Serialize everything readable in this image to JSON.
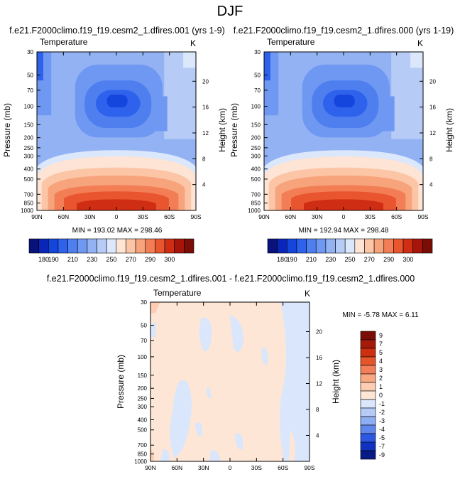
{
  "page_title": "DJF",
  "chart_data": [
    {
      "type": "heatmap",
      "id": "panel-001",
      "title": "f.e21.F2000climo.f19_f19.cesm2_1.dfires.001 (yrs 1-9)",
      "left_label": "Temperature",
      "units": "K",
      "xlabel": "",
      "ylabel": "Pressure (mb)",
      "right_label": "Height (km)",
      "x_ticks": [
        "90N",
        "60N",
        "30N",
        "0",
        "30S",
        "60S",
        "90S"
      ],
      "x_range": [
        90,
        -90
      ],
      "pressure_ticks": [
        30,
        50,
        70,
        100,
        150,
        200,
        250,
        300,
        400,
        500,
        700,
        850,
        1000
      ],
      "height_ticks": [
        4,
        8,
        12,
        16,
        20
      ],
      "stats_text": "MIN = 193.02  MAX = 298.46",
      "min": 193.02,
      "max": 298.46,
      "colorbar_labels": [
        "180",
        "190",
        "210",
        "230",
        "250",
        "270",
        "290",
        "300"
      ],
      "colorbar_levels": [
        180,
        190,
        200,
        210,
        220,
        230,
        240,
        250,
        260,
        270,
        280,
        290,
        300
      ]
    },
    {
      "type": "heatmap",
      "id": "panel-000",
      "title": "f.e21.F2000climo.f19_f19.cesm2_1.dfires.000 (yrs 1-19)",
      "left_label": "Temperature",
      "units": "K",
      "xlabel": "",
      "ylabel": "Pressure (mb)",
      "right_label": "Height (km)",
      "x_ticks": [
        "90N",
        "60N",
        "30N",
        "0",
        "30S",
        "60S",
        "90S"
      ],
      "x_range": [
        90,
        -90
      ],
      "pressure_ticks": [
        30,
        50,
        70,
        100,
        150,
        200,
        250,
        300,
        400,
        500,
        700,
        850,
        1000
      ],
      "height_ticks": [
        4,
        8,
        12,
        16,
        20
      ],
      "stats_text": "MIN = 192.94  MAX = 298.48",
      "min": 192.94,
      "max": 298.48,
      "colorbar_labels": [
        "180",
        "190",
        "210",
        "230",
        "250",
        "270",
        "290",
        "300"
      ],
      "colorbar_levels": [
        180,
        190,
        200,
        210,
        220,
        230,
        240,
        250,
        260,
        270,
        280,
        290,
        300
      ]
    },
    {
      "type": "heatmap",
      "id": "panel-diff",
      "title": "f.e21.F2000climo.f19_f19.cesm2_1.dfires.001 - f.e21.F2000climo.f19_f19.cesm2_1.dfires.000",
      "left_label": "Temperature",
      "units": "K",
      "xlabel": "",
      "ylabel": "Pressure (mb)",
      "right_label": "Height (km)",
      "x_ticks": [
        "90N",
        "60N",
        "30N",
        "0",
        "30S",
        "60S",
        "90S"
      ],
      "x_range": [
        90,
        -90
      ],
      "pressure_ticks": [
        30,
        50,
        70,
        100,
        150,
        200,
        250,
        300,
        400,
        500,
        700,
        850,
        1000
      ],
      "height_ticks": [
        4,
        8,
        12,
        16,
        20
      ],
      "stats_text": "MIN =  -5.78  MAX =   6.11",
      "min": -5.78,
      "max": 6.11,
      "colorbar_labels": [
        "9",
        "7",
        "5",
        "4",
        "3",
        "2",
        "1",
        "0",
        "-1",
        "-2",
        "-3",
        "-4",
        "-5",
        "-7",
        "-9"
      ],
      "colorbar_levels": [
        9,
        7,
        5,
        4,
        3,
        2,
        1,
        0,
        -1,
        -2,
        -3,
        -4,
        -5,
        -7,
        -9
      ]
    }
  ],
  "colors": {
    "temperature_scale": [
      "#08127a",
      "#0a26b8",
      "#1445dc",
      "#2f62ec",
      "#4f7fef",
      "#6f98f2",
      "#93b2f4",
      "#b6ccf7",
      "#dbe7fb",
      "#fde4d4",
      "#fbc5a6",
      "#f7a37b",
      "#f37e56",
      "#e8552f",
      "#d02e14",
      "#a5150a",
      "#7a0d06"
    ],
    "diff_scale": [
      "#7a0d06",
      "#a51a0a",
      "#cc3010",
      "#e5552c",
      "#f27f58",
      "#f7a880",
      "#fccdb3",
      "#fde6d5",
      "#d9e6fb",
      "#b5cbf6",
      "#8fadf2",
      "#5f87ec",
      "#2d58e0",
      "#0f33c0",
      "#071a86"
    ]
  }
}
